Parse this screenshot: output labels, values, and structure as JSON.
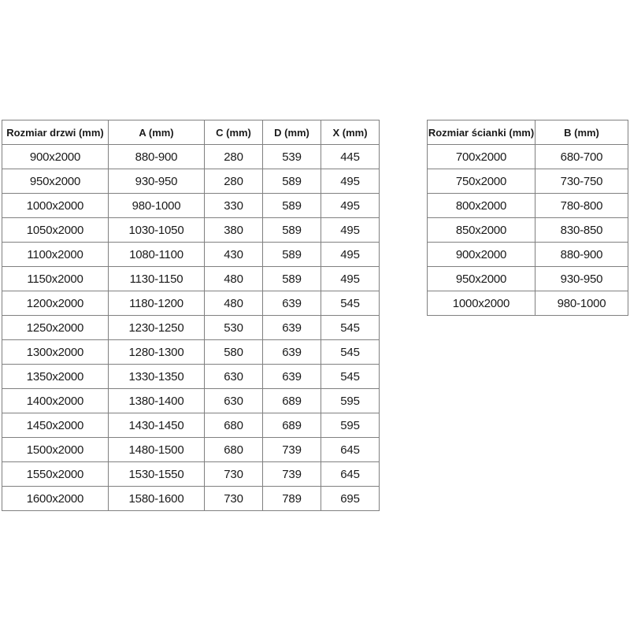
{
  "page": {
    "background_color": "#ffffff",
    "border_color": "#808080",
    "text_color": "#1a1a1a"
  },
  "tables": {
    "doors": {
      "title": "Rozmiar drzwi (mm)",
      "headers": [
        "Rozmiar drzwi (mm)",
        "A (mm)",
        "C (mm)",
        "D (mm)",
        "X (mm)"
      ],
      "rows": [
        [
          "900x2000",
          "880-900",
          "280",
          "539",
          "445"
        ],
        [
          "950x2000",
          "930-950",
          "280",
          "589",
          "495"
        ],
        [
          "1000x2000",
          "980-1000",
          "330",
          "589",
          "495"
        ],
        [
          "1050x2000",
          "1030-1050",
          "380",
          "589",
          "495"
        ],
        [
          "1100x2000",
          "1080-1100",
          "430",
          "589",
          "495"
        ],
        [
          "1150x2000",
          "1130-1150",
          "480",
          "589",
          "495"
        ],
        [
          "1200x2000",
          "1180-1200",
          "480",
          "639",
          "545"
        ],
        [
          "1250x2000",
          "1230-1250",
          "530",
          "639",
          "545"
        ],
        [
          "1300x2000",
          "1280-1300",
          "580",
          "639",
          "545"
        ],
        [
          "1350x2000",
          "1330-1350",
          "630",
          "639",
          "545"
        ],
        [
          "1400x2000",
          "1380-1400",
          "630",
          "689",
          "595"
        ],
        [
          "1450x2000",
          "1430-1450",
          "680",
          "689",
          "595"
        ],
        [
          "1500x2000",
          "1480-1500",
          "680",
          "739",
          "645"
        ],
        [
          "1550x2000",
          "1530-1550",
          "730",
          "739",
          "645"
        ],
        [
          "1600x2000",
          "1580-1600",
          "730",
          "789",
          "695"
        ]
      ]
    },
    "walls": {
      "title": "Rozmiar ścianki (mm)",
      "headers": [
        "Rozmiar ścianki (mm)",
        "B (mm)"
      ],
      "rows": [
        [
          "700x2000",
          "680-700"
        ],
        [
          "750x2000",
          "730-750"
        ],
        [
          "800x2000",
          "780-800"
        ],
        [
          "850x2000",
          "830-850"
        ],
        [
          "900x2000",
          "880-900"
        ],
        [
          "950x2000",
          "930-950"
        ],
        [
          "1000x2000",
          "980-1000"
        ]
      ]
    }
  }
}
